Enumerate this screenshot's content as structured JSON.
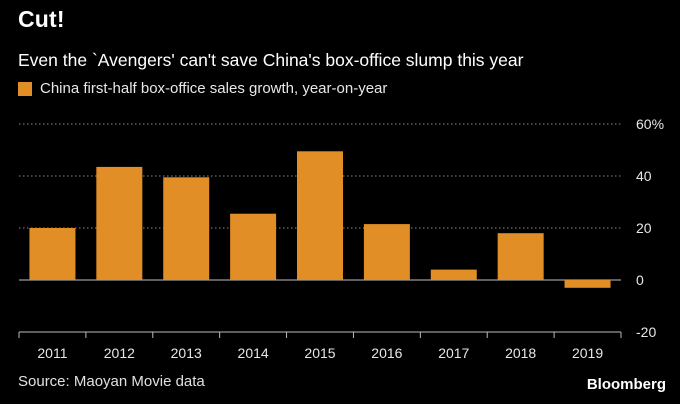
{
  "header": {
    "title": "Cut!",
    "subtitle": "Even the `Avengers' can't save China's box-office slump this year"
  },
  "footer": {
    "source": "Source: Maoyan Movie data",
    "brand": "Bloomberg"
  },
  "colors": {
    "background": "#000000",
    "bar": "#E08E25",
    "grid": "#8a8a8a",
    "zero_line": "#9a9a9a"
  },
  "chart_data": {
    "type": "bar",
    "title": "Cut!",
    "subtitle": "Even the `Avengers' can't save China's box-office slump this year",
    "categories": [
      "2011",
      "2012",
      "2013",
      "2014",
      "2015",
      "2016",
      "2017",
      "2018",
      "2019"
    ],
    "series": [
      {
        "name": "China first-half box-office sales growth, year-on-year",
        "values": [
          20,
          43.5,
          39.5,
          25.5,
          49.5,
          21.5,
          4,
          18,
          -3
        ]
      }
    ],
    "ylim": [
      -20,
      60
    ],
    "yticks": [
      -20,
      0,
      20,
      40,
      60
    ],
    "ytick_labels": [
      "-20",
      "0",
      "20",
      "40",
      "60%"
    ],
    "grid": true,
    "legend": "top-left",
    "xlabel": "",
    "ylabel": ""
  }
}
